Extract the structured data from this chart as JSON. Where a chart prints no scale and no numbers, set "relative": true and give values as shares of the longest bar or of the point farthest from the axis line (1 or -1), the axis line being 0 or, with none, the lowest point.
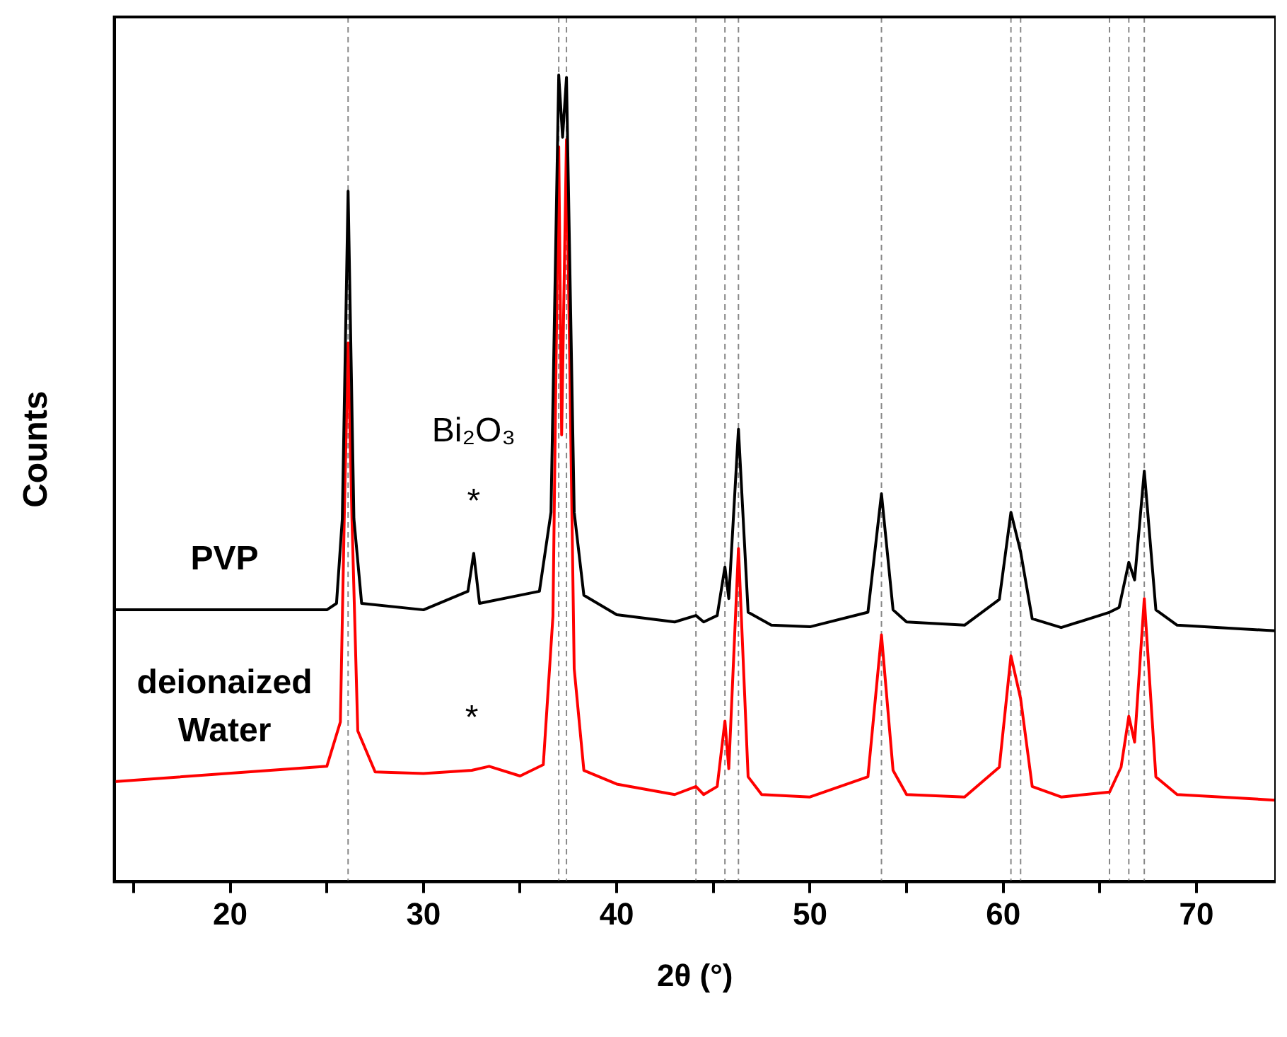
{
  "chart_data": {
    "type": "line",
    "relative": true,
    "xlabel": "2θ (°)",
    "ylabel": "Counts",
    "xlim": [
      14,
      74.1
    ],
    "xticks": [
      {
        "value": 15,
        "label": null
      },
      20,
      {
        "value": 25,
        "label": null
      },
      30,
      {
        "value": 35,
        "label": null
      },
      40,
      {
        "value": 45,
        "label": null
      },
      50,
      {
        "value": 55,
        "label": null
      },
      60,
      {
        "value": 65,
        "label": null
      },
      70
    ],
    "grid": false,
    "legend": false,
    "marker": "none",
    "line_style": "solid",
    "series": [
      {
        "name": "PVP",
        "color": "#000000",
        "x": [
          14,
          25,
          25.5,
          25.8,
          26.1,
          26.4,
          26.8,
          30,
          32.3,
          32.6,
          32.9,
          36,
          36.6,
          37.0,
          37.2,
          37.4,
          37.8,
          38.3,
          40,
          43,
          44.1,
          44.5,
          45.2,
          45.6,
          45.8,
          46.3,
          46.8,
          48,
          50,
          53,
          53.7,
          54.3,
          55,
          58,
          59.8,
          60.4,
          60.9,
          61.5,
          63,
          65.5,
          66.0,
          66.5,
          66.8,
          67.3,
          67.9,
          69,
          74.1
        ],
        "values": [
          0.337,
          0.337,
          0.345,
          0.45,
          0.856,
          0.45,
          0.345,
          0.337,
          0.36,
          0.407,
          0.345,
          0.36,
          0.458,
          1.0,
          0.923,
          0.997,
          0.458,
          0.355,
          0.331,
          0.322,
          0.33,
          0.322,
          0.33,
          0.39,
          0.351,
          0.561,
          0.334,
          0.318,
          0.316,
          0.334,
          0.481,
          0.337,
          0.322,
          0.318,
          0.35,
          0.458,
          0.409,
          0.326,
          0.315,
          0.334,
          0.34,
          0.396,
          0.374,
          0.509,
          0.337,
          0.318,
          0.311
        ]
      },
      {
        "name": "deionaized Water",
        "color": "#ff0000",
        "x": [
          14,
          25,
          25.7,
          25.9,
          26.1,
          26.3,
          26.6,
          27.5,
          30,
          32.5,
          33.4,
          35,
          36.2,
          36.7,
          37.0,
          37.15,
          37.4,
          37.8,
          38.3,
          40,
          43,
          44.1,
          44.5,
          45.2,
          45.6,
          45.8,
          46.3,
          46.8,
          47.5,
          50,
          53,
          53.7,
          54.3,
          55,
          58,
          59.8,
          60.4,
          60.9,
          61.5,
          63,
          65.5,
          66.1,
          66.5,
          66.8,
          67.3,
          67.9,
          69,
          74.1
        ],
        "values": [
          0.124,
          0.143,
          0.198,
          0.45,
          0.668,
          0.45,
          0.187,
          0.136,
          0.134,
          0.138,
          0.143,
          0.131,
          0.145,
          0.329,
          0.911,
          0.554,
          0.92,
          0.264,
          0.138,
          0.121,
          0.108,
          0.118,
          0.108,
          0.118,
          0.199,
          0.14,
          0.413,
          0.13,
          0.108,
          0.105,
          0.13,
          0.306,
          0.138,
          0.108,
          0.105,
          0.142,
          0.28,
          0.227,
          0.118,
          0.105,
          0.111,
          0.142,
          0.205,
          0.173,
          0.351,
          0.13,
          0.108,
          0.101
        ]
      }
    ],
    "ref_lines": [
      {
        "axis": "x",
        "value": 26.1,
        "color": "#888888",
        "line_style": "dashed"
      },
      {
        "axis": "x",
        "value": 37.0,
        "color": "#888888",
        "line_style": "dashed"
      },
      {
        "axis": "x",
        "value": 37.4,
        "color": "#888888",
        "line_style": "dashed"
      },
      {
        "axis": "x",
        "value": 44.1,
        "color": "#888888",
        "line_style": "dashed"
      },
      {
        "axis": "x",
        "value": 45.6,
        "color": "#888888",
        "line_style": "dashed"
      },
      {
        "axis": "x",
        "value": 46.3,
        "color": "#888888",
        "line_style": "dashed"
      },
      {
        "axis": "x",
        "value": 53.7,
        "color": "#888888",
        "line_style": "dashed"
      },
      {
        "axis": "x",
        "value": 60.4,
        "color": "#888888",
        "line_style": "dashed"
      },
      {
        "axis": "x",
        "value": 60.9,
        "color": "#888888",
        "line_style": "dashed"
      },
      {
        "axis": "x",
        "value": 65.5,
        "color": "#888888",
        "line_style": "dashed"
      },
      {
        "axis": "x",
        "value": 66.5,
        "color": "#888888",
        "line_style": "dashed"
      },
      {
        "axis": "x",
        "value": 67.3,
        "color": "#888888",
        "line_style": "dashed"
      }
    ],
    "annotations": [
      {
        "text": "*",
        "x": 32.6,
        "y": 0.407
      },
      "Bi₂O₃",
      {
        "text": "*",
        "x": 32.5,
        "y": 0.138
      }
    ]
  }
}
